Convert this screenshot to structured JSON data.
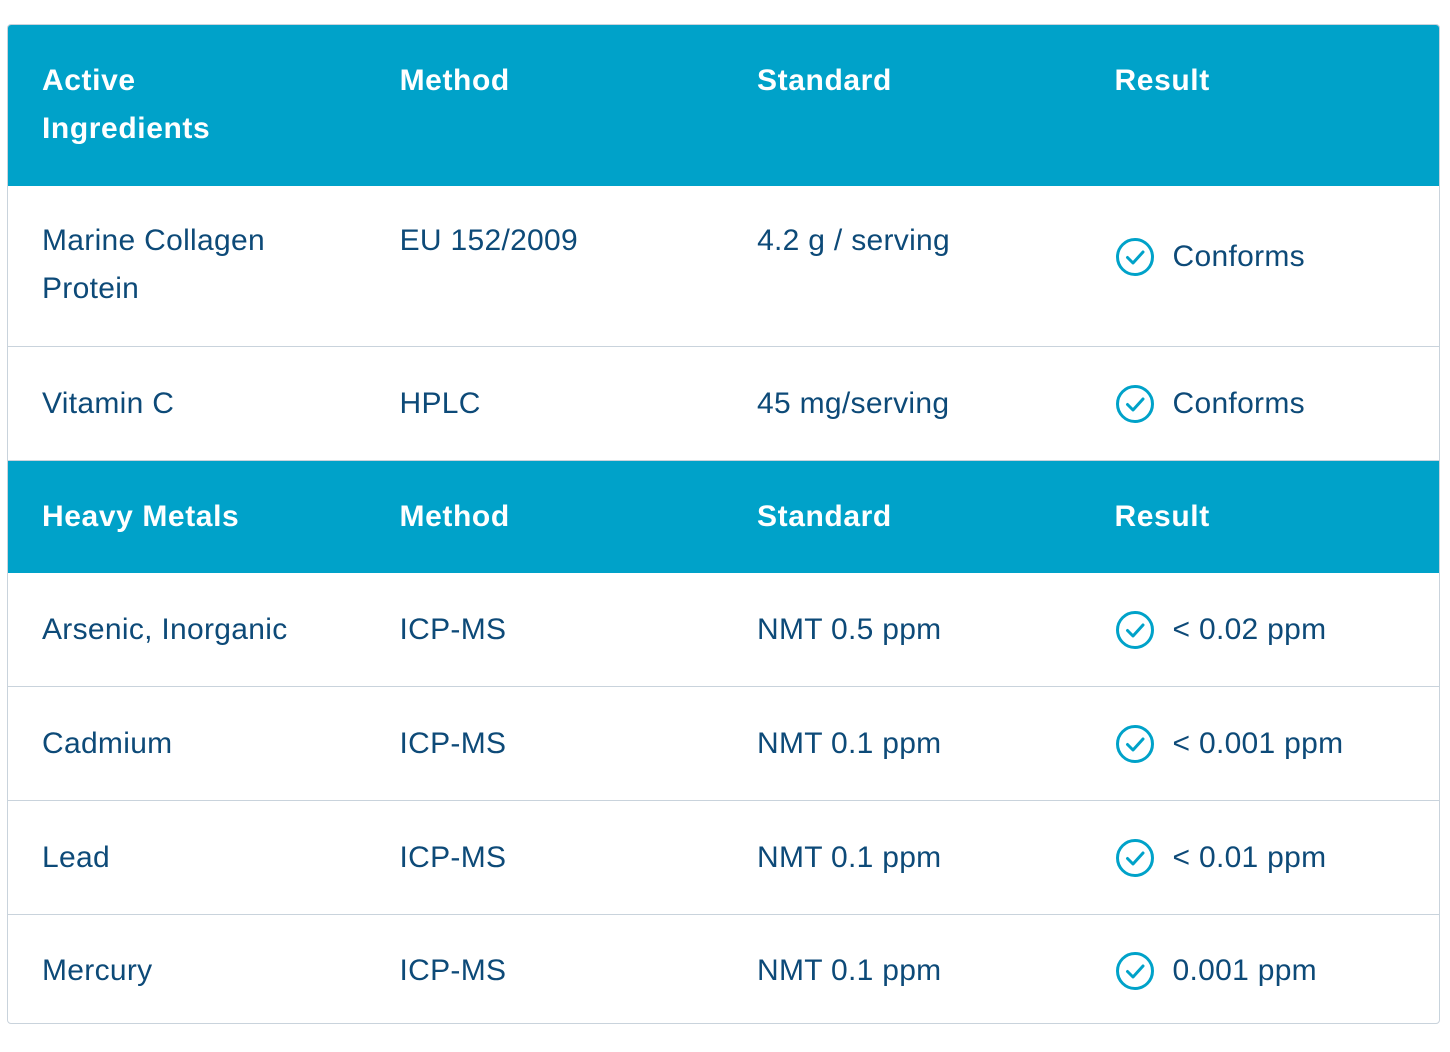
{
  "sections": [
    {
      "header": [
        "Active Ingredients",
        "Method",
        "Standard",
        "Result"
      ],
      "rows": [
        {
          "name": "Marine Collagen Protein",
          "method": "EU 152/2009",
          "standard": "4.2 g / serving",
          "result": "Conforms"
        },
        {
          "name": "Vitamin C",
          "method": "HPLC",
          "standard": "45 mg/serving",
          "result": "Conforms"
        }
      ]
    },
    {
      "header": [
        "Heavy Metals",
        "Method",
        "Standard",
        "Result"
      ],
      "rows": [
        {
          "name": "Arsenic, Inorganic",
          "method": "ICP-MS",
          "standard": "NMT 0.5 ppm",
          "result": "< 0.02 ppm"
        },
        {
          "name": "Cadmium",
          "method": "ICP-MS",
          "standard": "NMT 0.1 ppm",
          "result": "< 0.001 ppm"
        },
        {
          "name": "Lead",
          "method": "ICP-MS",
          "standard": "NMT 0.1 ppm",
          "result": "< 0.01 ppm"
        },
        {
          "name": "Mercury",
          "method": "ICP-MS",
          "standard": "NMT 0.1 ppm",
          "result": "0.001 ppm"
        }
      ]
    }
  ],
  "colors": {
    "header_bg": "#00a2c9",
    "text": "#0d4a78",
    "check": "#00a2c9",
    "border": "#c9d3dc"
  },
  "icons": {
    "result": "check-circle-icon"
  }
}
